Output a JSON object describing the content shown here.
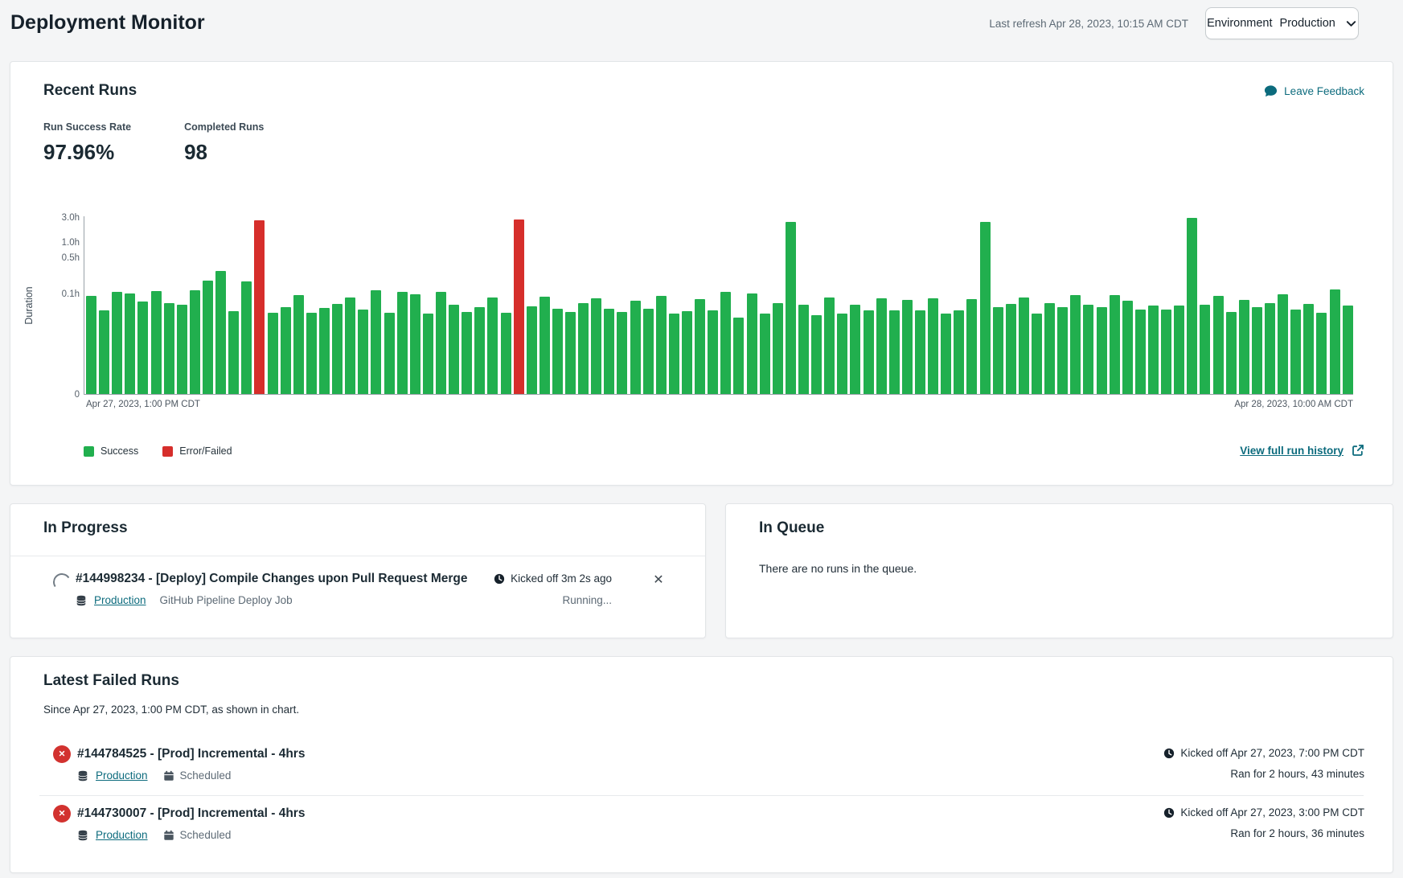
{
  "header": {
    "title": "Deployment Monitor",
    "last_refresh": "Last refresh Apr 28, 2023, 10:15 AM CDT",
    "environment_label": "Environment",
    "environment_value": "Production"
  },
  "recent_runs": {
    "title": "Recent Runs",
    "leave_feedback_label": "Leave Feedback",
    "stats": [
      {
        "label": "Run Success Rate",
        "value": "97.96%"
      },
      {
        "label": "Completed Runs",
        "value": "98"
      }
    ],
    "view_history_label": "View full run history"
  },
  "chart_data": {
    "type": "bar",
    "title": "",
    "xlabel": "",
    "ylabel": "Duration",
    "scale": "symlog",
    "ylim": [
      0,
      3
    ],
    "y_ticks": [
      {
        "label": "0",
        "value": 0
      },
      {
        "label": "0.1h",
        "value": 0.1
      },
      {
        "label": "0.5h",
        "value": 0.5
      },
      {
        "label": "1.0h",
        "value": 1.0
      },
      {
        "label": "3.0h",
        "value": 3.0
      }
    ],
    "x_start_label": "Apr 27, 2023, 1:00 PM CDT",
    "x_end_label": "Apr 28, 2023, 10:00 AM CDT",
    "values_h": [
      0.09,
      0.047,
      0.107,
      0.1,
      0.07,
      0.11,
      0.065,
      0.06,
      0.115,
      0.177,
      0.27,
      0.046,
      0.17,
      2.6,
      0.042,
      0.054,
      0.093,
      0.042,
      0.052,
      0.063,
      0.084,
      0.049,
      0.115,
      0.042,
      0.107,
      0.096,
      0.041,
      0.107,
      0.06,
      0.044,
      0.054,
      0.084,
      0.042,
      2.72,
      0.056,
      0.087,
      0.051,
      0.044,
      0.065,
      0.081,
      0.051,
      0.044,
      0.072,
      0.051,
      0.09,
      0.041,
      0.046,
      0.078,
      0.047,
      0.107,
      0.034,
      0.1,
      0.041,
      0.065,
      2.4,
      0.06,
      0.038,
      0.084,
      0.041,
      0.06,
      0.047,
      0.081,
      0.047,
      0.075,
      0.047,
      0.081,
      0.041,
      0.047,
      0.078,
      2.4,
      0.054,
      0.063,
      0.084,
      0.041,
      0.065,
      0.054,
      0.093,
      0.06,
      0.054,
      0.093,
      0.072,
      0.049,
      0.058,
      0.049,
      0.058,
      2.9,
      0.06,
      0.09,
      0.044,
      0.075,
      0.054,
      0.065,
      0.096,
      0.049,
      0.063,
      0.042,
      0.12,
      0.058
    ],
    "failed_indices": [
      13,
      33
    ],
    "colors": {
      "success": "#21af4e",
      "failed": "#d62e2b"
    },
    "legend": [
      {
        "label": "Success",
        "color": "#21af4e"
      },
      {
        "label": "Error/Failed",
        "color": "#d62e2b"
      }
    ],
    "legend_position": "bottom-left",
    "grid": false
  },
  "in_progress": {
    "title": "In Progress",
    "run": {
      "name": "#144998234 - [Deploy] Compile Changes upon Pull Request Merge",
      "environment": "Production",
      "job": "GitHub Pipeline Deploy Job",
      "kicked_off": "Kicked off 3m 2s ago",
      "status": "Running...",
      "close_glyph": "✕"
    }
  },
  "in_queue": {
    "title": "In Queue",
    "empty_message": "There are no runs in the queue."
  },
  "failed_runs": {
    "title": "Latest Failed Runs",
    "subtitle": "Since Apr 27, 2023, 1:00 PM CDT, as shown in chart.",
    "badge_glyph": "✕",
    "runs": [
      {
        "name": "#144784525 - [Prod] Incremental - 4hrs",
        "environment": "Production",
        "trigger": "Scheduled",
        "kicked_off": "Kicked off Apr 27, 2023, 7:00 PM CDT",
        "ran_for": "Ran for 2 hours, 43 minutes"
      },
      {
        "name": "#144730007 - [Prod] Incremental - 4hrs",
        "environment": "Production",
        "trigger": "Scheduled",
        "kicked_off": "Kicked off Apr 27, 2023, 3:00 PM CDT",
        "ran_for": "Ran for 2 hours, 36 minutes"
      }
    ]
  }
}
